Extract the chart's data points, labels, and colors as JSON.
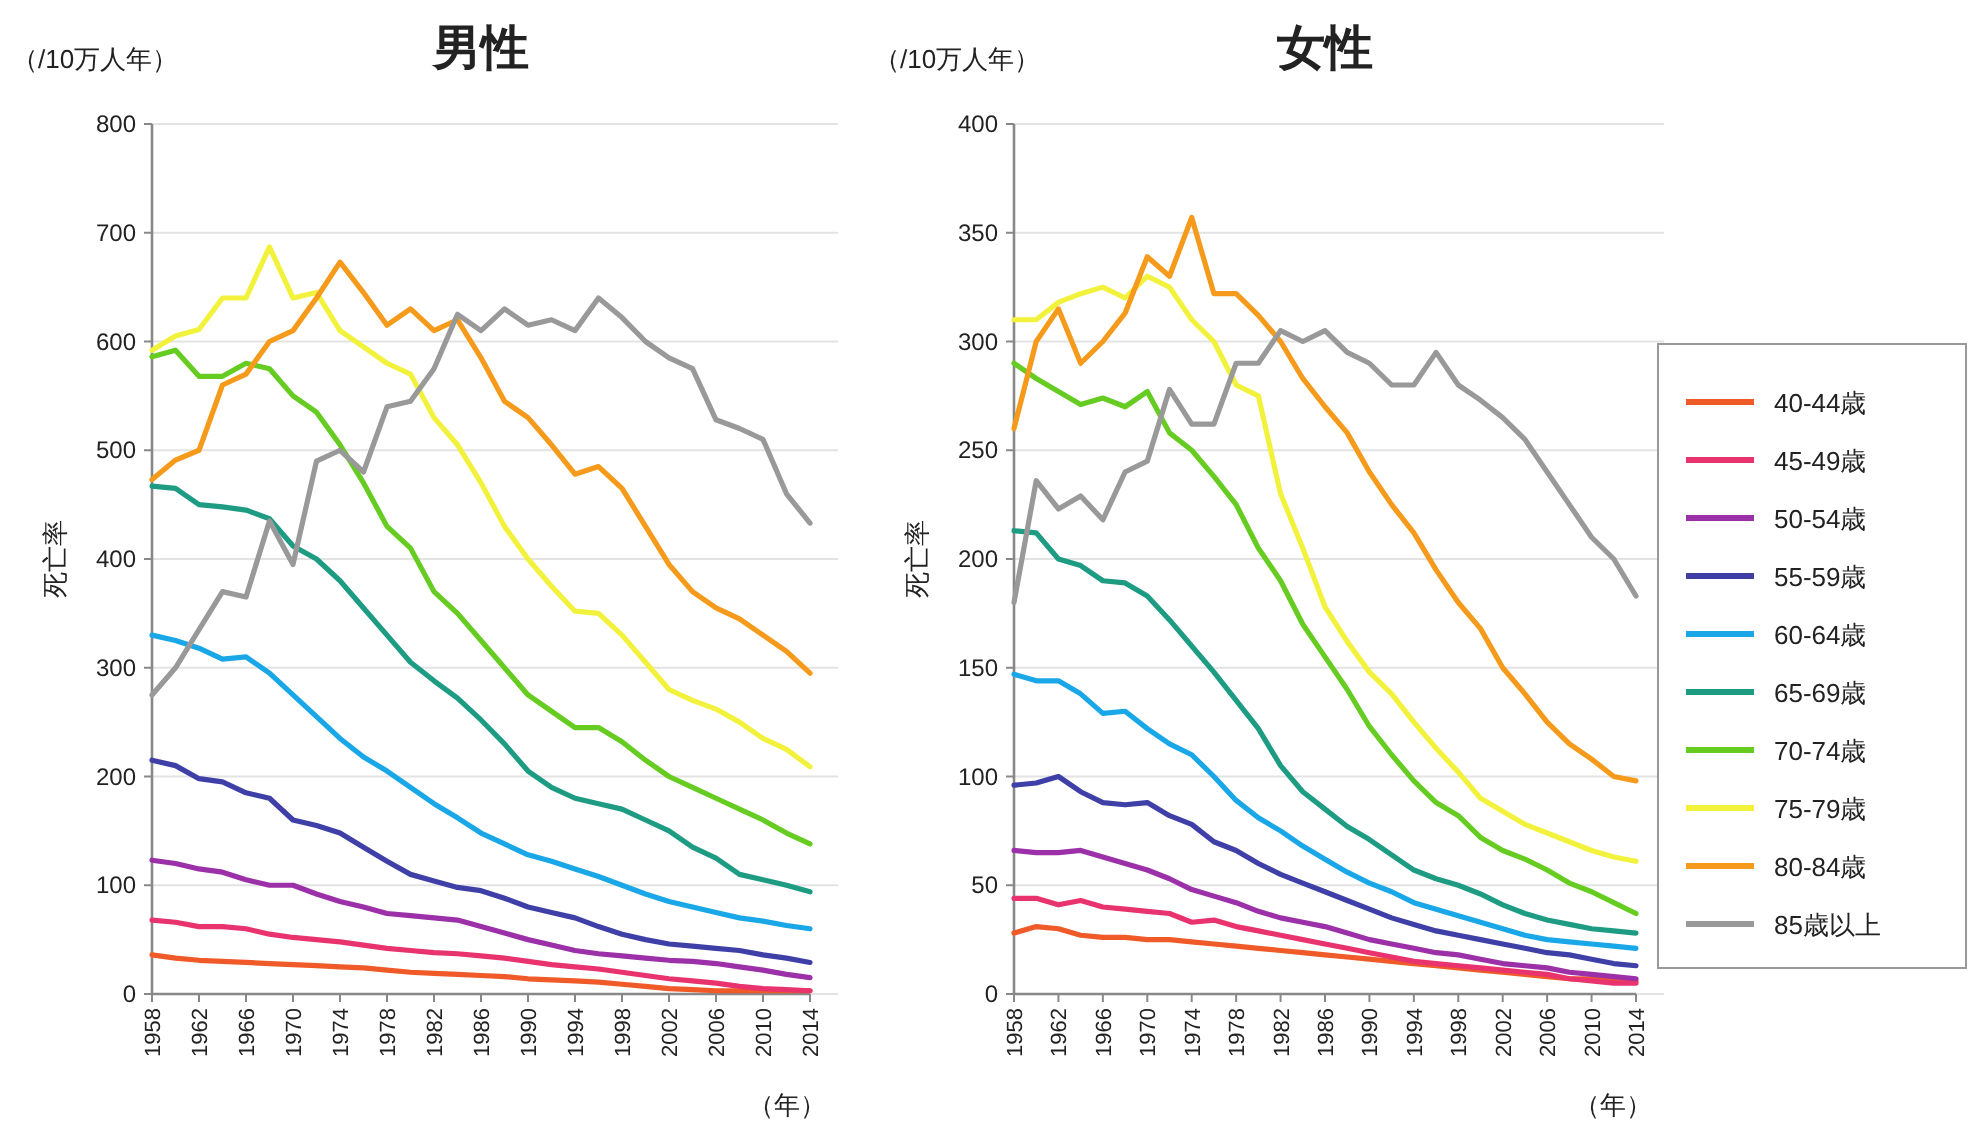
{
  "chart_data": [
    {
      "type": "line",
      "title": "男性",
      "ylabel": "死亡率",
      "xlabel": "（年）",
      "annotations": [
        "（/10万人年）"
      ],
      "x": [
        1958,
        1960,
        1962,
        1964,
        1966,
        1968,
        1970,
        1972,
        1974,
        1976,
        1978,
        1980,
        1982,
        1984,
        1986,
        1988,
        1990,
        1992,
        1994,
        1996,
        1998,
        2000,
        2002,
        2004,
        2006,
        2008,
        2010,
        2012,
        2014
      ],
      "xlim": [
        1958,
        2014
      ],
      "xticks": [
        1958,
        1962,
        1966,
        1970,
        1974,
        1978,
        1982,
        1986,
        1990,
        1994,
        1998,
        2002,
        2006,
        2010,
        2014
      ],
      "ylim": [
        0,
        800
      ],
      "yticks": [
        0,
        100,
        200,
        300,
        400,
        500,
        600,
        700,
        800
      ],
      "grid": "y",
      "legend": false,
      "series": [
        {
          "color": "#f05a28",
          "values": [
            36,
            33,
            31,
            30,
            29,
            28,
            27,
            26,
            25,
            24,
            22,
            20,
            19,
            18,
            17,
            16,
            14,
            13,
            12,
            11,
            9,
            7,
            5,
            4,
            3,
            3,
            3,
            3,
            3
          ]
        },
        {
          "color": "#e8336f",
          "values": [
            68,
            66,
            62,
            62,
            60,
            55,
            52,
            50,
            48,
            45,
            42,
            40,
            38,
            37,
            35,
            33,
            30,
            27,
            25,
            23,
            20,
            17,
            14,
            12,
            10,
            7,
            5,
            4,
            3
          ]
        },
        {
          "color": "#9b30a8",
          "values": [
            123,
            120,
            115,
            112,
            105,
            100,
            100,
            92,
            85,
            80,
            74,
            72,
            70,
            68,
            62,
            56,
            50,
            45,
            40,
            37,
            35,
            33,
            31,
            30,
            28,
            25,
            22,
            18,
            15
          ]
        },
        {
          "color": "#3f3fa8",
          "values": [
            215,
            210,
            198,
            195,
            185,
            180,
            160,
            155,
            148,
            135,
            122,
            110,
            104,
            98,
            95,
            88,
            80,
            75,
            70,
            62,
            55,
            50,
            46,
            44,
            42,
            40,
            36,
            33,
            29
          ]
        },
        {
          "color": "#1aa7e8",
          "values": [
            330,
            325,
            318,
            308,
            310,
            295,
            275,
            255,
            235,
            218,
            205,
            190,
            175,
            162,
            148,
            138,
            128,
            122,
            115,
            108,
            100,
            92,
            85,
            80,
            75,
            70,
            67,
            63,
            60
          ]
        },
        {
          "color": "#1e9c83",
          "values": [
            467,
            465,
            450,
            448,
            445,
            437,
            412,
            400,
            380,
            355,
            330,
            305,
            288,
            272,
            252,
            230,
            205,
            190,
            180,
            175,
            170,
            160,
            150,
            135,
            125,
            110,
            105,
            100,
            94
          ]
        },
        {
          "color": "#66cc22",
          "values": [
            586,
            592,
            568,
            568,
            580,
            575,
            550,
            535,
            505,
            470,
            430,
            410,
            370,
            350,
            325,
            300,
            275,
            260,
            245,
            245,
            232,
            215,
            200,
            190,
            180,
            170,
            160,
            148,
            138
          ]
        },
        {
          "color": "#f2f23c",
          "values": [
            592,
            605,
            611,
            640,
            640,
            687,
            640,
            645,
            610,
            595,
            580,
            570,
            530,
            505,
            470,
            430,
            400,
            375,
            352,
            350,
            330,
            305,
            280,
            270,
            262,
            250,
            235,
            225,
            209
          ]
        },
        {
          "color": "#f59a1a",
          "values": [
            473,
            491,
            500,
            560,
            570,
            600,
            610,
            640,
            673,
            645,
            615,
            630,
            610,
            620,
            585,
            545,
            530,
            505,
            478,
            485,
            465,
            430,
            395,
            370,
            355,
            345,
            330,
            315,
            295
          ]
        },
        {
          "color": "#999999",
          "values": [
            275,
            300,
            335,
            370,
            365,
            435,
            395,
            490,
            500,
            480,
            540,
            545,
            575,
            625,
            610,
            630,
            615,
            620,
            610,
            640,
            622,
            600,
            585,
            575,
            528,
            520,
            510,
            460,
            433
          ]
        }
      ]
    },
    {
      "type": "line",
      "title": "女性",
      "ylabel": "死亡率",
      "xlabel": "（年）",
      "annotations": [
        "（/10万人年）"
      ],
      "x": [
        1958,
        1960,
        1962,
        1964,
        1966,
        1968,
        1970,
        1972,
        1974,
        1976,
        1978,
        1980,
        1982,
        1984,
        1986,
        1988,
        1990,
        1992,
        1994,
        1996,
        1998,
        2000,
        2002,
        2004,
        2006,
        2008,
        2010,
        2012,
        2014
      ],
      "xlim": [
        1958,
        2014
      ],
      "xticks": [
        1958,
        1962,
        1966,
        1970,
        1974,
        1978,
        1982,
        1986,
        1990,
        1994,
        1998,
        2002,
        2006,
        2010,
        2014
      ],
      "ylim": [
        0,
        400
      ],
      "yticks": [
        0,
        50,
        100,
        150,
        200,
        250,
        300,
        350,
        400
      ],
      "grid": "y",
      "legend": "right",
      "series": [
        {
          "name": "40-44歳",
          "color": "#f05a28",
          "values": [
            28,
            31,
            30,
            27,
            26,
            26,
            25,
            25,
            24,
            23,
            22,
            21,
            20,
            19,
            18,
            17,
            16,
            15,
            14,
            13,
            12,
            11,
            10,
            9,
            8,
            7,
            7,
            6,
            6
          ]
        },
        {
          "name": "45-49歳",
          "color": "#e8336f",
          "values": [
            44,
            44,
            41,
            43,
            40,
            39,
            38,
            37,
            33,
            34,
            31,
            29,
            27,
            25,
            23,
            21,
            19,
            17,
            15,
            14,
            13,
            12,
            11,
            10,
            9,
            7,
            6,
            5,
            5
          ]
        },
        {
          "name": "50-54歳",
          "color": "#9b30a8",
          "values": [
            66,
            65,
            65,
            66,
            63,
            60,
            57,
            53,
            48,
            45,
            42,
            38,
            35,
            33,
            31,
            28,
            25,
            23,
            21,
            19,
            18,
            16,
            14,
            13,
            12,
            10,
            9,
            8,
            7
          ]
        },
        {
          "name": "55-59歳",
          "color": "#3f3fa8",
          "values": [
            96,
            97,
            100,
            93,
            88,
            87,
            88,
            82,
            78,
            70,
            66,
            60,
            55,
            51,
            47,
            43,
            39,
            35,
            32,
            29,
            27,
            25,
            23,
            21,
            19,
            18,
            16,
            14,
            13
          ]
        },
        {
          "name": "60-64歳",
          "color": "#1aa7e8",
          "values": [
            147,
            144,
            144,
            138,
            129,
            130,
            122,
            115,
            110,
            100,
            89,
            81,
            75,
            68,
            62,
            56,
            51,
            47,
            42,
            39,
            36,
            33,
            30,
            27,
            25,
            24,
            23,
            22,
            21
          ]
        },
        {
          "name": "65-69歳",
          "color": "#1e9c83",
          "values": [
            213,
            212,
            200,
            197,
            190,
            189,
            183,
            172,
            160,
            148,
            135,
            122,
            105,
            93,
            85,
            77,
            71,
            64,
            57,
            53,
            50,
            46,
            41,
            37,
            34,
            32,
            30,
            29,
            28
          ]
        },
        {
          "name": "70-74歳",
          "color": "#66cc22",
          "values": [
            290,
            283,
            277,
            271,
            274,
            270,
            277,
            258,
            250,
            238,
            225,
            205,
            190,
            170,
            155,
            140,
            123,
            110,
            98,
            88,
            82,
            72,
            66,
            62,
            57,
            51,
            47,
            42,
            37
          ]
        },
        {
          "name": "75-79歳",
          "color": "#f2f23c",
          "values": [
            310,
            310,
            318,
            322,
            325,
            320,
            330,
            325,
            310,
            300,
            280,
            275,
            230,
            205,
            178,
            162,
            148,
            138,
            125,
            113,
            102,
            90,
            84,
            78,
            74,
            70,
            66,
            63,
            61
          ]
        },
        {
          "name": "80-84歳",
          "color": "#f59a1a",
          "values": [
            260,
            300,
            315,
            290,
            300,
            313,
            339,
            330,
            357,
            322,
            322,
            312,
            300,
            283,
            270,
            258,
            240,
            225,
            212,
            195,
            180,
            168,
            150,
            138,
            125,
            115,
            108,
            100,
            98
          ]
        },
        {
          "name": "85歳以上",
          "color": "#999999",
          "values": [
            180,
            236,
            223,
            229,
            218,
            240,
            245,
            278,
            262,
            262,
            290,
            290,
            305,
            300,
            305,
            295,
            290,
            280,
            280,
            295,
            280,
            273,
            265,
            255,
            240,
            225,
            210,
            200,
            183
          ]
        }
      ]
    }
  ]
}
